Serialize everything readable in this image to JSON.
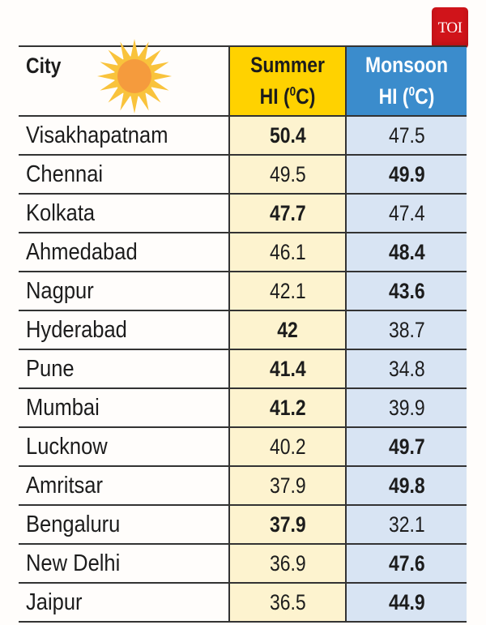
{
  "logo": "TOI",
  "colors": {
    "summer_header": "#ffd200",
    "summer_cells": "#fdf3cf",
    "monsoon_header": "#3b8ccc",
    "monsoon_cells": "#d8e4f3",
    "logo": "#d0141a"
  },
  "chart_data": {
    "type": "table",
    "columns": [
      "City",
      "Summer HI (0C)",
      "Monsoon HI (0C)"
    ],
    "header": {
      "city": "City",
      "summer_line1": "Summer",
      "summer_line2": "HI (",
      "monsoon_line1": "Monsoon",
      "monsoon_line2": "HI (",
      "degree_sup": "0",
      "unit_close": "C)"
    },
    "rows": [
      {
        "city": "Visakhapatnam",
        "summer": "50.4",
        "monsoon": "47.5",
        "bold": "summer"
      },
      {
        "city": "Chennai",
        "summer": "49.5",
        "monsoon": "49.9",
        "bold": "monsoon"
      },
      {
        "city": "Kolkata",
        "summer": "47.7",
        "monsoon": "47.4",
        "bold": "summer"
      },
      {
        "city": "Ahmedabad",
        "summer": "46.1",
        "monsoon": "48.4",
        "bold": "monsoon"
      },
      {
        "city": "Nagpur",
        "summer": "42.1",
        "monsoon": "43.6",
        "bold": "monsoon"
      },
      {
        "city": "Hyderabad",
        "summer": "42",
        "monsoon": "38.7",
        "bold": "summer"
      },
      {
        "city": "Pune",
        "summer": "41.4",
        "monsoon": "34.8",
        "bold": "summer"
      },
      {
        "city": "Mumbai",
        "summer": "41.2",
        "monsoon": "39.9",
        "bold": "summer"
      },
      {
        "city": "Lucknow",
        "summer": "40.2",
        "monsoon": "49.7",
        "bold": "monsoon"
      },
      {
        "city": "Amritsar",
        "summer": "37.9",
        "monsoon": "49.8",
        "bold": "monsoon"
      },
      {
        "city": "Bengaluru",
        "summer": "37.9",
        "monsoon": "32.1",
        "bold": "summer"
      },
      {
        "city": "New Delhi",
        "summer": "36.9",
        "monsoon": "47.6",
        "bold": "monsoon"
      },
      {
        "city": "Jaipur",
        "summer": "36.5",
        "monsoon": "44.9",
        "bold": "monsoon"
      }
    ]
  }
}
